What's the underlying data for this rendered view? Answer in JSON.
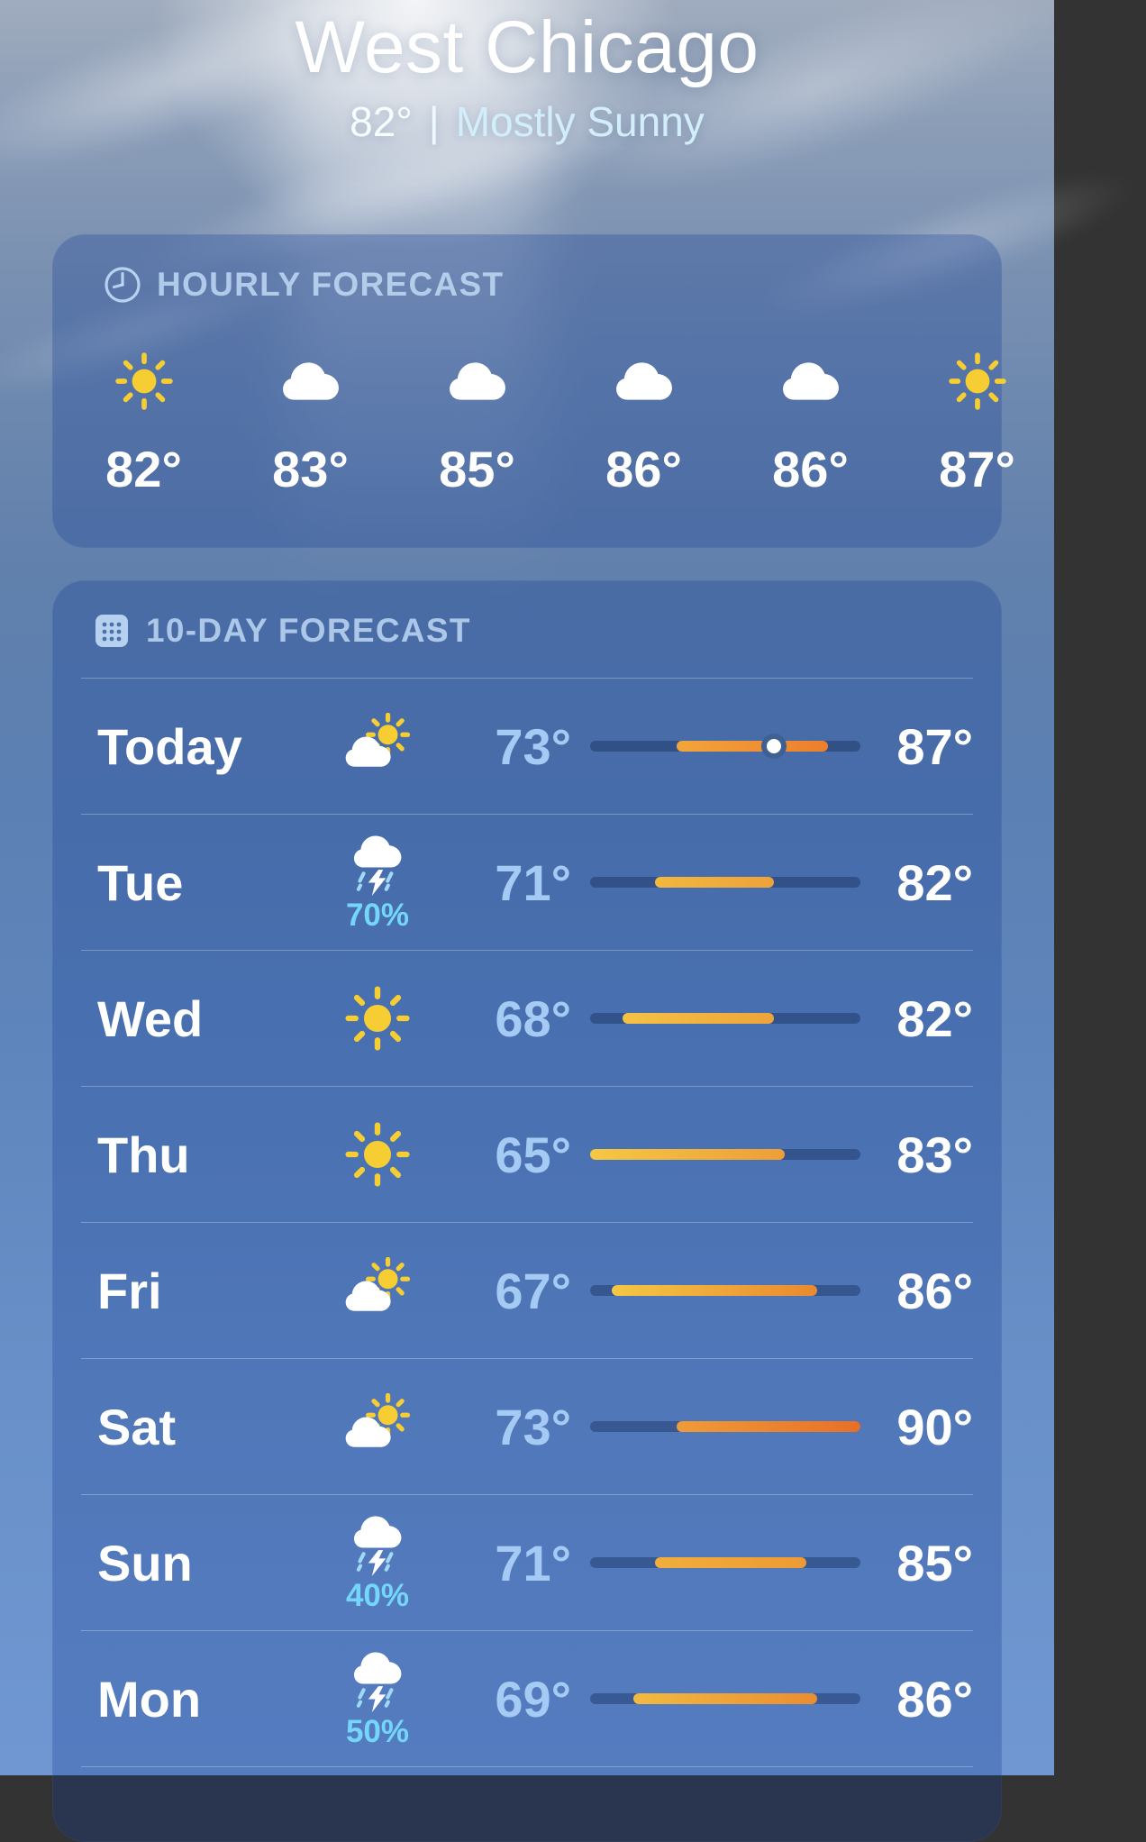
{
  "location": {
    "name": "West Chicago",
    "current_temp": "82°",
    "separator": "|",
    "condition": "Mostly Sunny"
  },
  "hourly": {
    "header": "HOURLY FORECAST",
    "icon": "clock",
    "items": [
      {
        "icon": "sun",
        "temp": "82°"
      },
      {
        "icon": "cloud",
        "temp": "83°"
      },
      {
        "icon": "cloud",
        "temp": "85°"
      },
      {
        "icon": "cloud",
        "temp": "86°"
      },
      {
        "icon": "cloud",
        "temp": "86°"
      },
      {
        "icon": "sun",
        "temp": "87°"
      }
    ]
  },
  "ten_day": {
    "header": "10-DAY FORECAST",
    "icon": "calendar",
    "scale": {
      "min": 65,
      "max": 90
    },
    "days": [
      {
        "day": "Today",
        "icon": "cloud-sun",
        "low": 73,
        "high": 87,
        "current": 82,
        "fill_from": "#f2a53c",
        "fill_to": "#ec7e2d"
      },
      {
        "day": "Tue",
        "icon": "cloud-bolt-rain",
        "precip": "70%",
        "low": 71,
        "high": 82,
        "fill_from": "#f1b83f",
        "fill_to": "#eda23a"
      },
      {
        "day": "Wed",
        "icon": "sun",
        "low": 68,
        "high": 82,
        "fill_from": "#f4c244",
        "fill_to": "#eea43b"
      },
      {
        "day": "Thu",
        "icon": "sun",
        "low": 65,
        "high": 83,
        "fill_from": "#f4c844",
        "fill_to": "#ed9e38"
      },
      {
        "day": "Fri",
        "icon": "cloud-sun",
        "low": 67,
        "high": 86,
        "fill_from": "#f4c844",
        "fill_to": "#e9892f"
      },
      {
        "day": "Sat",
        "icon": "cloud-sun",
        "low": 73,
        "high": 90,
        "fill_from": "#ef9b38",
        "fill_to": "#e86f26"
      },
      {
        "day": "Sun",
        "icon": "cloud-bolt-rain",
        "precip": "40%",
        "low": 71,
        "high": 85,
        "fill_from": "#f0ae3c",
        "fill_to": "#ed9a36"
      },
      {
        "day": "Mon",
        "icon": "cloud-bolt-rain",
        "precip": "50%",
        "low": 69,
        "high": 86,
        "fill_from": "#f2ba40",
        "fill_to": "#ea8d31"
      }
    ]
  },
  "colors": {
    "low_temp": "#a5cbf4",
    "high_temp": "#ffffff",
    "precip_text": "#74d6fb",
    "section_header": "#c5def9",
    "bar_track": "#3e6093",
    "sun_yellow": "#f6ce33"
  }
}
